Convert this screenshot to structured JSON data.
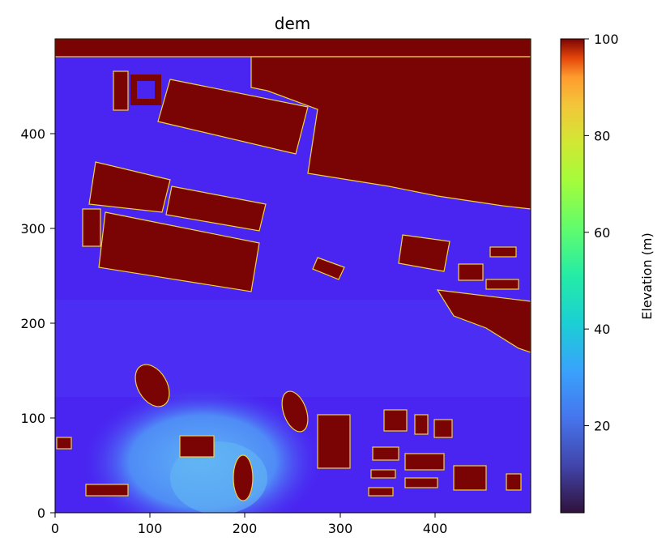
{
  "chart_data": {
    "type": "heatmap",
    "title": "dem",
    "xlabel": "",
    "ylabel": "",
    "xlim": [
      0,
      500
    ],
    "ylim": [
      0,
      500
    ],
    "x_ticks": [
      0,
      100,
      200,
      300,
      400
    ],
    "y_ticks": [
      0,
      100,
      200,
      300,
      400
    ],
    "colorbar": {
      "label": "Elevation (m)",
      "range": [
        2,
        100
      ],
      "ticks": [
        20,
        40,
        60,
        80,
        100
      ],
      "colormap": "turbo"
    },
    "background_elevation_m": 12,
    "regions": [
      {
        "name": "north-strip",
        "elevation_m": 100
      },
      {
        "name": "large-block-top-right",
        "elevation_m": 100
      },
      {
        "name": "block-top-left",
        "elevation_m": 100
      },
      {
        "name": "block-middle-left",
        "elevation_m": 100
      },
      {
        "name": "low-area-bottom",
        "elevation_m": 28
      }
    ]
  },
  "colors": {
    "building": "#7a0403",
    "ground": "#4a1ff2",
    "ground_light": "#4b2ef6",
    "low_area": "#4b8af6"
  }
}
